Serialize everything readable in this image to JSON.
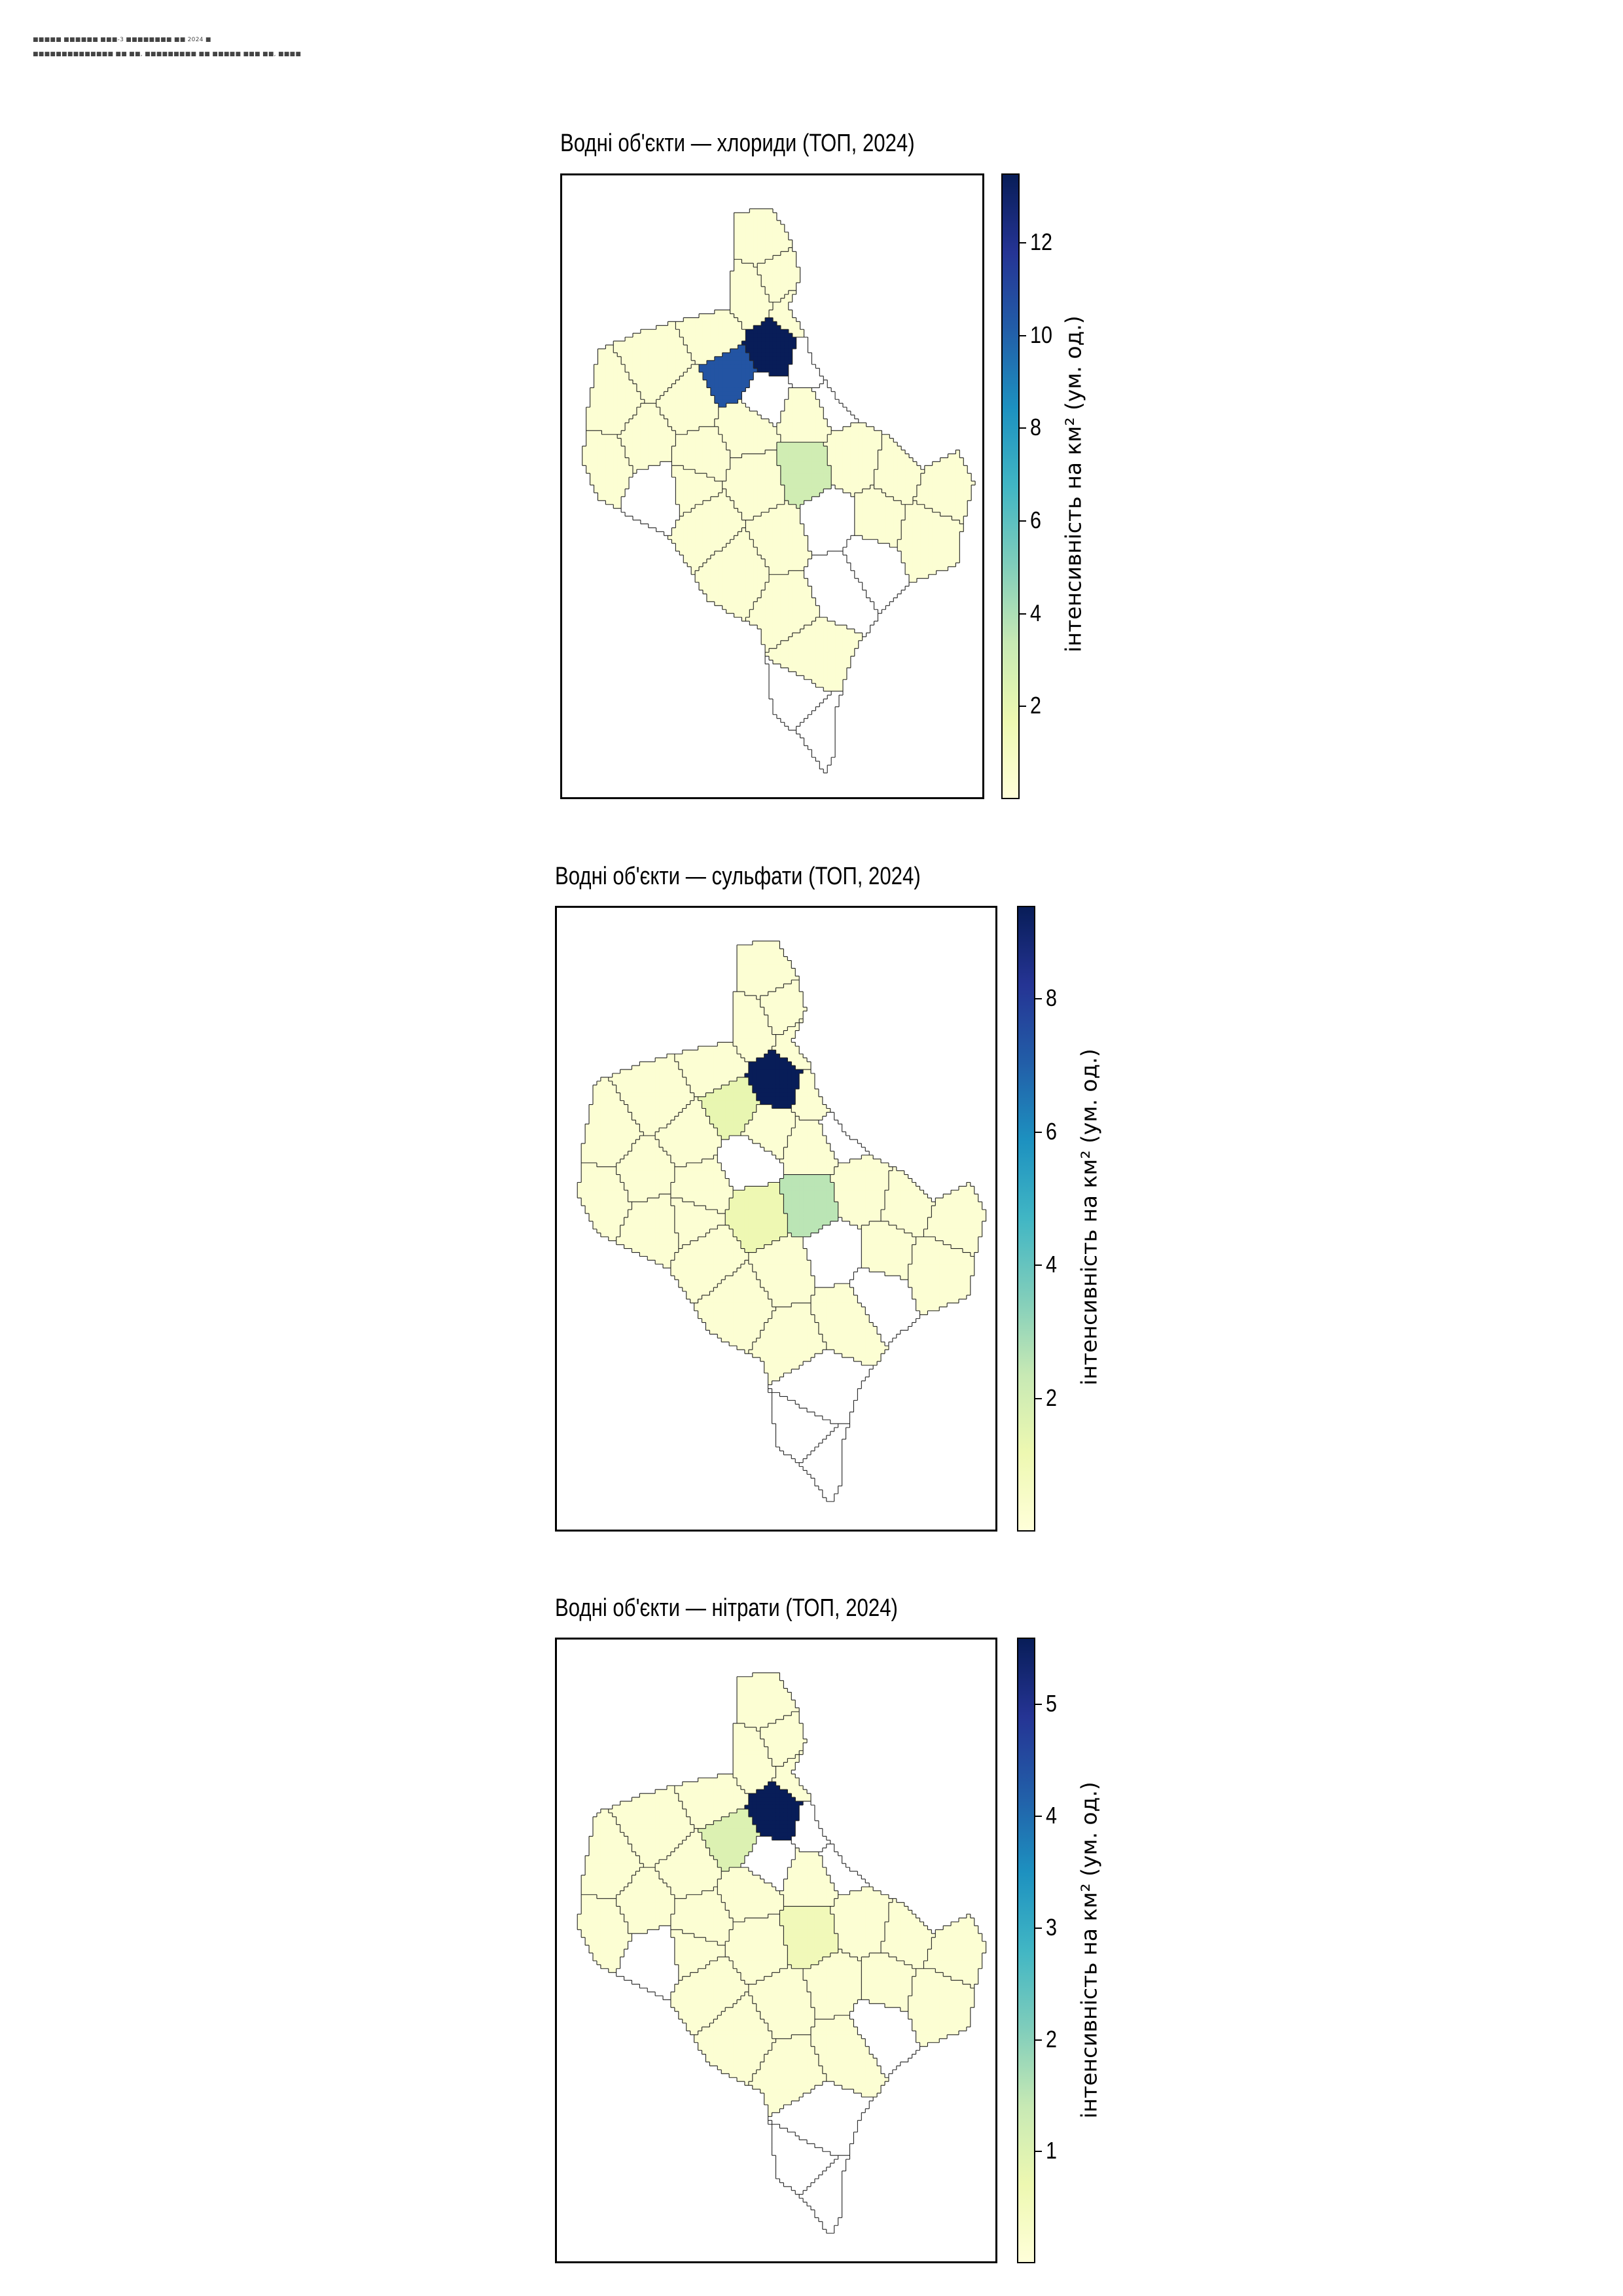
{
  "header": {
    "line1": "■■■■■ ■■■■■■ ■■■-3 ■■■■■■■■ ■■ 2024 ■",
    "line2": "■■■■■■■■■■■■■■ ■■ ■■, ■■■■■■■■■ ■■ ■■■■■ ■■■ ■■, ■■■■"
  },
  "colorbar_label": "інтенсивність на км² (ум. од.)",
  "colors": {
    "low": "#ffffd9",
    "mid": "#41b6c4",
    "high": "#081d58",
    "border": "#000000"
  },
  "chart_data": [
    {
      "type": "choropleth",
      "title": "Водні об'єкти — хлориди (ТОП, 2024)",
      "colorbar": {
        "min": 0,
        "max": 13.5,
        "ticks": [
          2,
          4,
          6,
          8,
          10,
          12
        ],
        "cmap": "YlGnBu"
      },
      "regions_highlighted": [
        {
          "name": "darkest",
          "value": 13.5
        },
        {
          "name": "second",
          "value": 10.5
        },
        {
          "name": "third",
          "value": 3.0
        }
      ]
    },
    {
      "type": "choropleth",
      "title": "Водні об'єкти — сульфати (ТОП, 2024)",
      "colorbar": {
        "min": 0,
        "max": 9.4,
        "ticks": [
          2,
          4,
          6,
          8
        ],
        "cmap": "YlGnBu"
      },
      "regions_highlighted": [
        {
          "name": "darkest",
          "value": 9.4
        },
        {
          "name": "second",
          "value": 2.5
        },
        {
          "name": "third",
          "value": 1.2
        }
      ]
    },
    {
      "type": "choropleth",
      "title": "Водні об'єкти — нітрати (ТОП, 2024)",
      "colorbar": {
        "min": 0,
        "max": 5.6,
        "ticks": [
          1,
          2,
          3,
          4,
          5
        ],
        "cmap": "YlGnBu"
      },
      "regions_highlighted": [
        {
          "name": "darkest",
          "value": 5.6
        },
        {
          "name": "second",
          "value": 1.0
        },
        {
          "name": "third",
          "value": 0.6
        }
      ]
    }
  ]
}
